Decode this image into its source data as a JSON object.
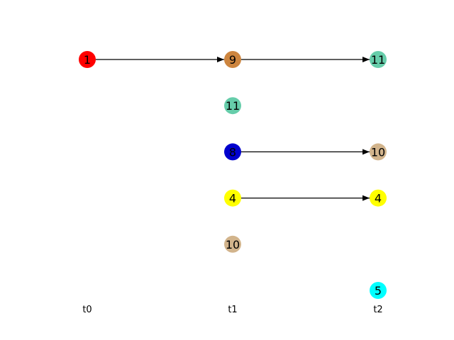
{
  "columns": [
    {
      "label": "t0"
    },
    {
      "label": "t1"
    },
    {
      "label": "t2"
    }
  ],
  "nodes": [
    {
      "id": "a",
      "label": "1",
      "col": 0,
      "row": 0,
      "color": "#ff0000"
    },
    {
      "id": "b",
      "label": "9",
      "col": 1,
      "row": 0,
      "color": "#cd853f"
    },
    {
      "id": "c",
      "label": "11",
      "col": 2,
      "row": 0,
      "color": "#66cdaa"
    },
    {
      "id": "d",
      "label": "11",
      "col": 1,
      "row": 1,
      "color": "#66cdaa"
    },
    {
      "id": "e",
      "label": "8",
      "col": 1,
      "row": 2,
      "color": "#0000cd"
    },
    {
      "id": "f",
      "label": "10",
      "col": 2,
      "row": 2,
      "color": "#d2b48c"
    },
    {
      "id": "g",
      "label": "4",
      "col": 1,
      "row": 3,
      "color": "#ffff00"
    },
    {
      "id": "h",
      "label": "4",
      "col": 2,
      "row": 3,
      "color": "#ffff00"
    },
    {
      "id": "i",
      "label": "10",
      "col": 1,
      "row": 4,
      "color": "#d2b48c"
    },
    {
      "id": "j",
      "label": "5",
      "col": 2,
      "row": 5,
      "color": "#00ffff"
    }
  ],
  "edges": [
    {
      "from": "a",
      "to": "b"
    },
    {
      "from": "b",
      "to": "c"
    },
    {
      "from": "e",
      "to": "f"
    },
    {
      "from": "g",
      "to": "h"
    }
  ]
}
